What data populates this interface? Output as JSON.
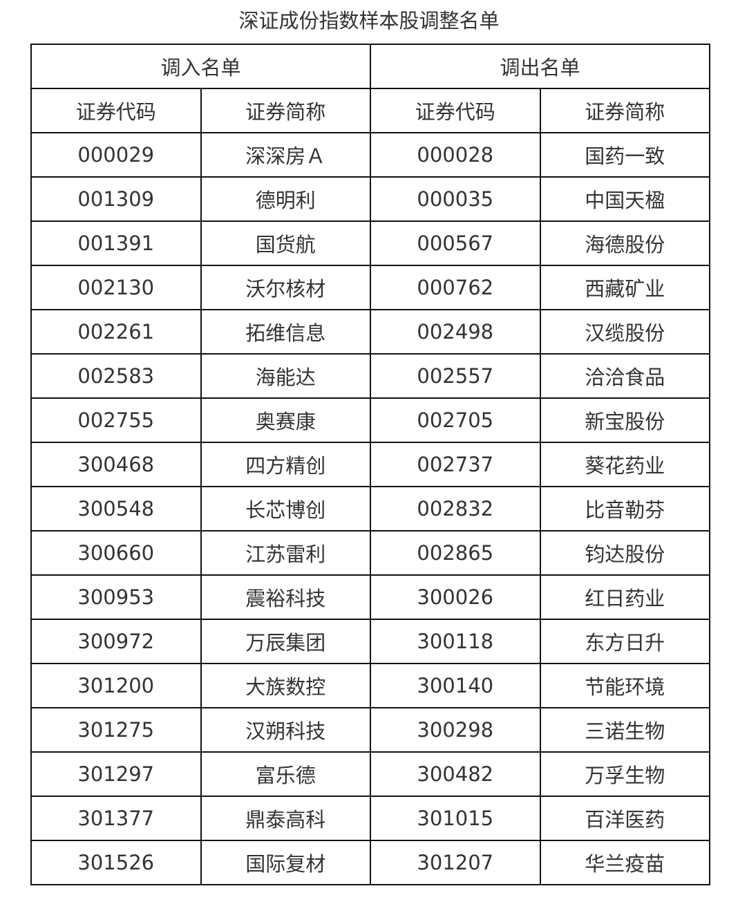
{
  "title": "深证成份指数样本股调整名单",
  "groups": [
    "调入名单",
    "调出名单"
  ],
  "columns": [
    "证券代码",
    "证券简称",
    "证券代码",
    "证券简称"
  ],
  "rows": [
    [
      "000029",
      "深深房Ａ",
      "000028",
      "国药一致"
    ],
    [
      "001309",
      "德明利",
      "000035",
      "中国天楹"
    ],
    [
      "001391",
      "国货航",
      "000567",
      "海德股份"
    ],
    [
      "002130",
      "沃尔核材",
      "000762",
      "西藏矿业"
    ],
    [
      "002261",
      "拓维信息",
      "002498",
      "汉缆股份"
    ],
    [
      "002583",
      "海能达",
      "002557",
      "洽洽食品"
    ],
    [
      "002755",
      "奥赛康",
      "002705",
      "新宝股份"
    ],
    [
      "300468",
      "四方精创",
      "002737",
      "葵花药业"
    ],
    [
      "300548",
      "长芯博创",
      "002832",
      "比音勒芬"
    ],
    [
      "300660",
      "江苏雷利",
      "002865",
      "钧达股份"
    ],
    [
      "300953",
      "震裕科技",
      "300026",
      "红日药业"
    ],
    [
      "300972",
      "万辰集团",
      "300118",
      "东方日升"
    ],
    [
      "301200",
      "大族数控",
      "300140",
      "节能环境"
    ],
    [
      "301275",
      "汉朔科技",
      "300298",
      "三诺生物"
    ],
    [
      "301297",
      "富乐德",
      "300482",
      "万孚生物"
    ],
    [
      "301377",
      "鼎泰高科",
      "301015",
      "百洋医药"
    ],
    [
      "301526",
      "国际复材",
      "301207",
      "华兰疫苗"
    ]
  ]
}
